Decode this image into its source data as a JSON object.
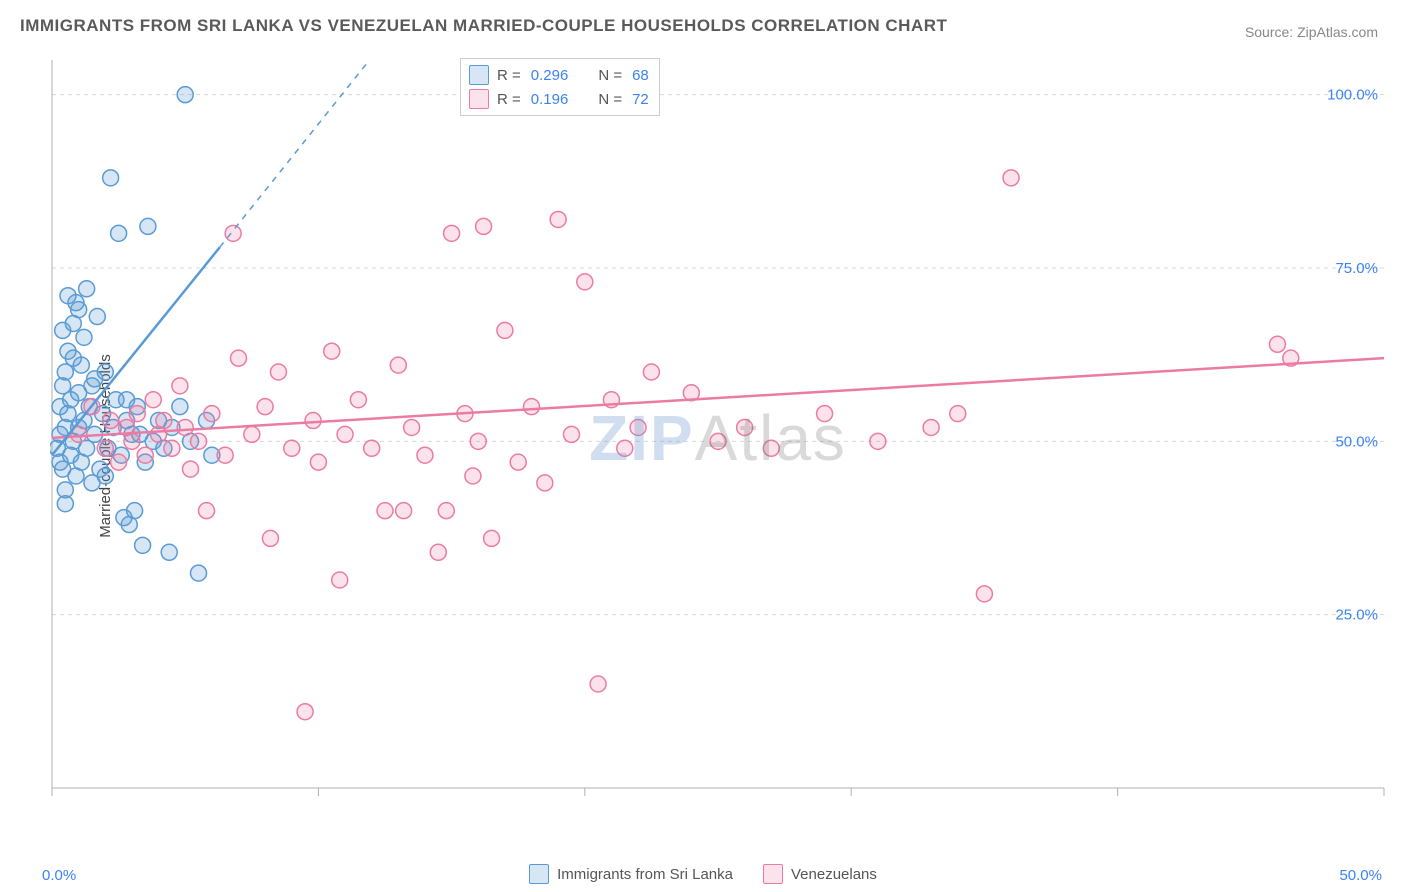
{
  "title": "IMMIGRANTS FROM SRI LANKA VS VENEZUELAN MARRIED-COUPLE HOUSEHOLDS CORRELATION CHART",
  "source": "Source: ZipAtlas.com",
  "ylabel": "Married-couple Households",
  "watermark": {
    "part1": "ZIP",
    "part2": "Atlas"
  },
  "chart": {
    "type": "scatter",
    "background_color": "#ffffff",
    "grid_color": "#d8d8d8",
    "axis_color": "#b0b0b0",
    "tick_color": "#b0b0b0",
    "label_color": "#3b82f6",
    "xlim": [
      0,
      50
    ],
    "ylim": [
      0,
      105
    ],
    "x_ticks": [
      0,
      10,
      20,
      30,
      40,
      50
    ],
    "x_tick_labels": [
      "0.0%",
      "",
      "",
      "",
      "",
      "50.0%"
    ],
    "y_grid": [
      25,
      50,
      75,
      100
    ],
    "y_tick_labels": [
      "25.0%",
      "50.0%",
      "75.0%",
      "100.0%"
    ],
    "marker_radius": 8,
    "marker_stroke_width": 1.5,
    "marker_fill_opacity": 0.25,
    "line_width": 2.5
  },
  "series": {
    "s1": {
      "label": "Immigrants from Sri Lanka",
      "color": "#5a9bd5",
      "fill": "rgba(90,155,213,0.25)",
      "r": "0.296",
      "n": "68",
      "trend": {
        "x1": 0,
        "y1": 48,
        "x2": 6.3,
        "y2": 78,
        "dash_x2": 14,
        "dash_y2": 115
      },
      "points": [
        [
          0.2,
          49
        ],
        [
          0.3,
          51
        ],
        [
          0.3,
          55
        ],
        [
          0.4,
          46
        ],
        [
          0.4,
          58
        ],
        [
          0.5,
          43
        ],
        [
          0.5,
          52
        ],
        [
          0.5,
          60
        ],
        [
          0.6,
          54
        ],
        [
          0.6,
          63
        ],
        [
          0.7,
          48
        ],
        [
          0.7,
          56
        ],
        [
          0.8,
          50
        ],
        [
          0.8,
          67
        ],
        [
          0.9,
          45
        ],
        [
          0.9,
          70
        ],
        [
          1.0,
          52
        ],
        [
          1.0,
          57
        ],
        [
          1.1,
          47
        ],
        [
          1.1,
          61
        ],
        [
          1.2,
          53
        ],
        [
          1.2,
          65
        ],
        [
          1.3,
          49
        ],
        [
          1.3,
          72
        ],
        [
          1.4,
          55
        ],
        [
          1.5,
          44
        ],
        [
          1.5,
          58
        ],
        [
          1.6,
          51
        ],
        [
          1.7,
          68
        ],
        [
          1.8,
          46
        ],
        [
          1.9,
          54
        ],
        [
          2.0,
          60
        ],
        [
          2.1,
          49
        ],
        [
          2.2,
          88
        ],
        [
          2.3,
          52
        ],
        [
          2.4,
          56
        ],
        [
          2.5,
          80
        ],
        [
          2.6,
          48
        ],
        [
          2.8,
          53
        ],
        [
          2.9,
          38
        ],
        [
          3.0,
          51
        ],
        [
          3.1,
          40
        ],
        [
          3.2,
          55
        ],
        [
          3.5,
          47
        ],
        [
          3.6,
          81
        ],
        [
          3.8,
          50
        ],
        [
          4.0,
          53
        ],
        [
          4.2,
          49
        ],
        [
          4.5,
          52
        ],
        [
          4.8,
          55
        ],
        [
          5.0,
          100
        ],
        [
          5.2,
          50
        ],
        [
          5.5,
          31
        ],
        [
          5.8,
          53
        ],
        [
          6.0,
          48
        ],
        [
          2.7,
          39
        ],
        [
          3.4,
          35
        ],
        [
          4.4,
          34
        ],
        [
          1.0,
          69
        ],
        [
          0.6,
          71
        ],
        [
          0.4,
          66
        ],
        [
          0.3,
          47
        ],
        [
          0.5,
          41
        ],
        [
          0.8,
          62
        ],
        [
          1.6,
          59
        ],
        [
          2.0,
          45
        ],
        [
          2.8,
          56
        ],
        [
          3.3,
          51
        ]
      ]
    },
    "s2": {
      "label": "Venezuelans",
      "color": "#ec7ba3",
      "fill": "rgba(236,123,163,0.22)",
      "r": "0.196",
      "n": "72",
      "trend": {
        "x1": 0,
        "y1": 50.5,
        "x2": 50,
        "y2": 62
      },
      "points": [
        [
          1.0,
          51
        ],
        [
          1.5,
          55
        ],
        [
          2.0,
          49
        ],
        [
          2.2,
          53
        ],
        [
          2.5,
          47
        ],
        [
          2.8,
          52
        ],
        [
          3.0,
          50
        ],
        [
          3.2,
          54
        ],
        [
          3.5,
          48
        ],
        [
          3.8,
          56
        ],
        [
          4.0,
          51
        ],
        [
          4.2,
          53
        ],
        [
          4.5,
          49
        ],
        [
          4.8,
          58
        ],
        [
          5.0,
          52
        ],
        [
          5.2,
          46
        ],
        [
          5.5,
          50
        ],
        [
          5.8,
          40
        ],
        [
          6.0,
          54
        ],
        [
          6.5,
          48
        ],
        [
          7.0,
          62
        ],
        [
          7.5,
          51
        ],
        [
          8.0,
          55
        ],
        [
          8.2,
          36
        ],
        [
          8.5,
          60
        ],
        [
          9.0,
          49
        ],
        [
          9.5,
          11
        ],
        [
          9.8,
          53
        ],
        [
          10.0,
          47
        ],
        [
          10.5,
          63
        ],
        [
          11.0,
          51
        ],
        [
          11.5,
          56
        ],
        [
          12.0,
          49
        ],
        [
          12.5,
          40
        ],
        [
          13.0,
          61
        ],
        [
          13.5,
          52
        ],
        [
          14.0,
          48
        ],
        [
          14.5,
          34
        ],
        [
          15.0,
          80
        ],
        [
          15.5,
          54
        ],
        [
          16.0,
          50
        ],
        [
          16.2,
          81
        ],
        [
          16.5,
          36
        ],
        [
          17.0,
          66
        ],
        [
          17.5,
          47
        ],
        [
          18.0,
          55
        ],
        [
          18.5,
          44
        ],
        [
          19.0,
          82
        ],
        [
          19.5,
          51
        ],
        [
          20.0,
          73
        ],
        [
          20.5,
          15
        ],
        [
          21.0,
          56
        ],
        [
          21.5,
          49
        ],
        [
          22.0,
          52
        ],
        [
          22.5,
          60
        ],
        [
          24.0,
          57
        ],
        [
          25.0,
          50
        ],
        [
          26.0,
          52
        ],
        [
          27.0,
          49
        ],
        [
          29.0,
          54
        ],
        [
          31.0,
          50
        ],
        [
          33.0,
          52
        ],
        [
          35.0,
          28
        ],
        [
          36.0,
          88
        ],
        [
          46.0,
          64
        ],
        [
          46.5,
          62
        ],
        [
          6.8,
          80
        ],
        [
          34.0,
          54
        ],
        [
          10.8,
          30
        ],
        [
          13.2,
          40
        ],
        [
          14.8,
          40
        ],
        [
          15.8,
          45
        ]
      ]
    }
  },
  "legend_top": {
    "r_label": "R =",
    "n_label": "N ="
  },
  "legend_bottom_labels": {
    "s1": "Immigrants from Sri Lanka",
    "s2": "Venezuelans"
  }
}
